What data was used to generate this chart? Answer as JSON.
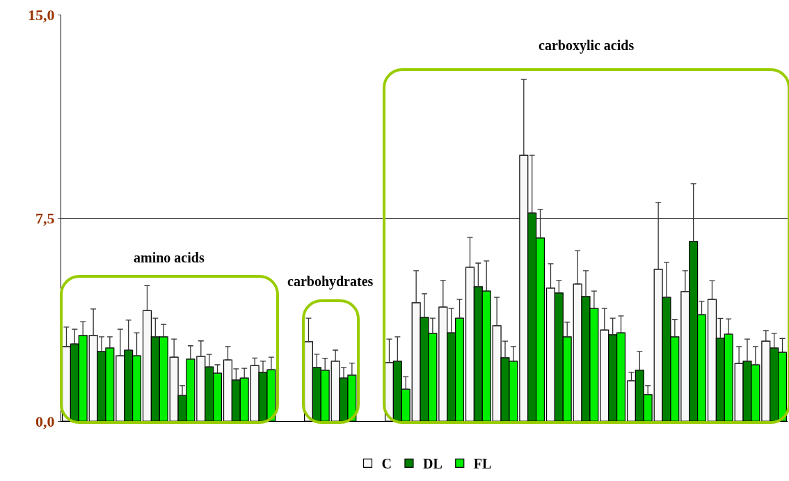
{
  "chart_data": {
    "type": "bar",
    "categories": [
      null,
      null,
      null,
      null,
      null,
      null,
      null,
      null,
      null,
      null,
      null,
      null,
      null,
      null,
      null,
      null,
      null,
      null,
      null,
      null,
      null,
      null,
      null,
      null,
      null,
      null,
      null
    ],
    "series": [
      {
        "name": "C",
        "color": "#f8f8f8",
        "values": [
          2.75,
          3.16,
          2.41,
          4.08,
          2.36,
          2.39,
          2.26,
          2.05,
          null,
          2.93,
          2.21,
          null,
          2.16,
          4.37,
          4.21,
          5.68,
          3.52,
          9.81,
          4.91,
          5.06,
          3.36,
          1.49,
          5.6,
          4.78,
          4.49,
          2.13,
          2.95
        ],
        "errors": [
          [
            2.75,
            3.47
          ],
          [
            3.16,
            4.14
          ],
          [
            2.41,
            3.39
          ],
          [
            4.08,
            5.0
          ],
          [
            2.36,
            3.03
          ],
          [
            2.39,
            2.96
          ],
          [
            2.26,
            2.75
          ],
          [
            2.05,
            2.33
          ],
          null,
          [
            2.93,
            3.8
          ],
          [
            2.21,
            2.62
          ],
          null,
          [
            2.16,
            3.03
          ],
          [
            4.37,
            5.55
          ],
          [
            4.21,
            5.19
          ],
          [
            5.68,
            6.78
          ],
          [
            3.52,
            4.57
          ],
          [
            9.81,
            12.61
          ],
          [
            4.91,
            5.81
          ],
          [
            5.06,
            6.29
          ],
          [
            3.36,
            4.16
          ],
          [
            1.49,
            1.8
          ],
          [
            5.6,
            8.07
          ],
          [
            4.78,
            5.55
          ],
          [
            4.49,
            5.18
          ],
          [
            2.13,
            2.75
          ],
          [
            2.95,
            3.34
          ]
        ]
      },
      {
        "name": "DL",
        "color": "#008000",
        "values": [
          2.85,
          2.57,
          2.62,
          3.11,
          0.95,
          2.0,
          1.52,
          1.8,
          null,
          1.98,
          1.59,
          null,
          2.21,
          3.83,
          3.26,
          4.96,
          2.34,
          7.68,
          4.73,
          4.6,
          3.19,
          1.88,
          4.57,
          6.63,
          3.06,
          2.21,
          2.7
        ],
        "errors": [
          [
            2.85,
            3.39
          ],
          [
            2.57,
            3.11
          ],
          [
            2.62,
            3.73
          ],
          [
            3.11,
            3.8
          ],
          [
            0.95,
            1.31
          ],
          [
            2.0,
            2.46
          ],
          [
            1.52,
            1.93
          ],
          [
            1.8,
            2.21
          ],
          null,
          [
            1.98,
            2.47
          ],
          [
            1.59,
            1.98
          ],
          null,
          [
            2.21,
            3.11
          ],
          [
            3.83,
            4.7
          ],
          [
            3.26,
            4.16
          ],
          [
            4.96,
            5.83
          ],
          [
            2.34,
            2.95
          ],
          [
            7.68,
            9.81
          ],
          [
            4.73,
            5.19
          ],
          [
            4.6,
            5.55
          ],
          [
            3.19,
            3.8
          ],
          [
            1.88,
            2.57
          ],
          [
            4.57,
            5.86
          ],
          [
            6.63,
            8.76
          ],
          [
            3.06,
            3.79
          ],
          [
            2.21,
            3.03
          ],
          [
            2.7,
            3.24
          ]
        ]
      },
      {
        "name": "FL",
        "color": "#00ee00",
        "values": [
          3.16,
          2.7,
          2.41,
          3.11,
          2.29,
          1.77,
          1.59,
          1.9,
          null,
          1.88,
          1.7,
          null,
          1.18,
          3.24,
          3.8,
          4.8,
          2.21,
          6.76,
          3.11,
          4.16,
          3.26,
          0.98,
          3.11,
          3.93,
          3.21,
          2.08,
          2.54
        ],
        "errors": [
          [
            3.16,
            3.67
          ],
          [
            2.7,
            3.11
          ],
          [
            2.41,
            3.26
          ],
          [
            3.11,
            3.57
          ],
          [
            2.29,
            2.78
          ],
          [
            1.77,
            2.08
          ],
          [
            1.59,
            1.95
          ],
          [
            1.9,
            2.36
          ],
          null,
          [
            1.88,
            2.32
          ],
          [
            1.7,
            2.14
          ],
          null,
          [
            1.18,
            1.64
          ],
          [
            3.24,
            3.8
          ],
          [
            3.8,
            4.49
          ],
          [
            4.8,
            5.91
          ],
          [
            2.21,
            2.75
          ],
          [
            6.76,
            7.81
          ],
          [
            3.11,
            3.65
          ],
          [
            4.16,
            4.8
          ],
          [
            3.26,
            3.88
          ],
          [
            0.98,
            1.31
          ],
          [
            3.11,
            3.75
          ],
          [
            3.93,
            4.42
          ],
          [
            3.21,
            3.77
          ],
          [
            2.08,
            2.75
          ],
          [
            2.54,
            3.05
          ]
        ]
      }
    ],
    "ylim": [
      0,
      15
    ],
    "yticks": [
      {
        "value": 0,
        "label": "0,0"
      },
      {
        "value": 7.5,
        "label": "7,5"
      },
      {
        "value": 15,
        "label": "15,0"
      }
    ],
    "grid": "y",
    "legend": "bottom",
    "tick_labels": "y",
    "annotations": [
      "amino acids",
      "carbohydrates",
      "carboxylic acids"
    ]
  }
}
